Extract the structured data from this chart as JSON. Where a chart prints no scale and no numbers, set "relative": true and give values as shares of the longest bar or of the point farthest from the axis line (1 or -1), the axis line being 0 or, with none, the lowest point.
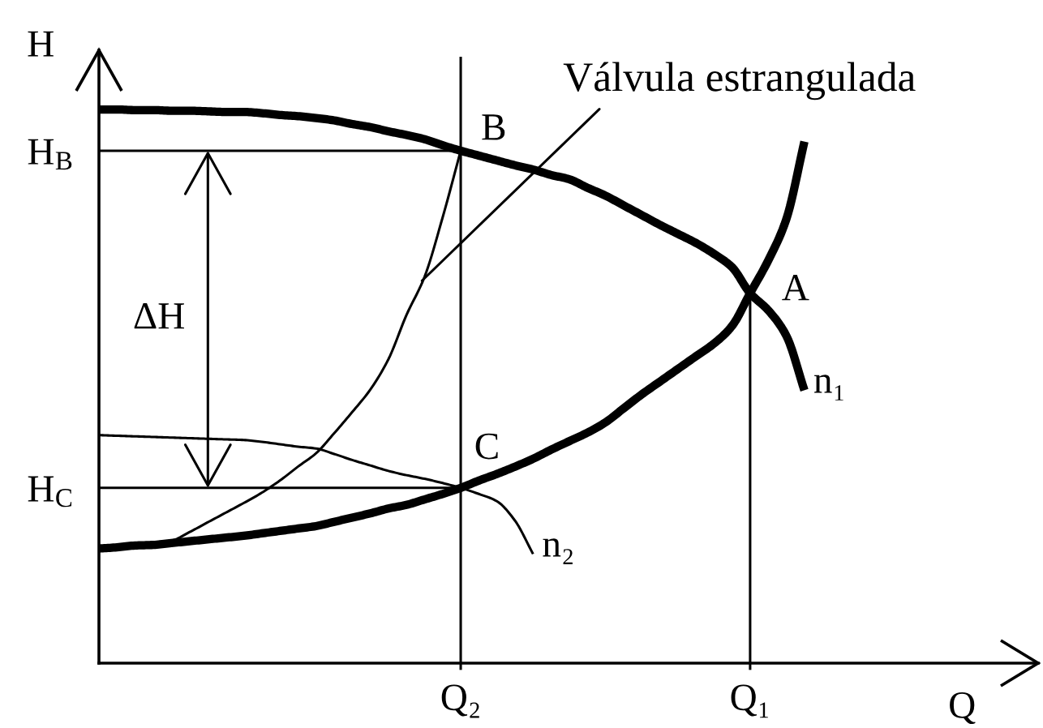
{
  "chart_data": {
    "type": "line",
    "relative": true,
    "xlabel": "Q",
    "ylabel": "H",
    "categories": [
      null,
      null,
      null,
      null,
      null,
      null,
      null,
      null,
      null,
      null,
      null,
      null,
      null,
      null,
      null,
      null,
      null,
      null,
      null,
      null,
      "Q₂",
      null,
      null,
      null,
      null,
      null,
      null,
      null,
      null,
      null,
      null,
      null,
      null,
      null,
      null,
      null,
      "Q₁",
      null,
      null,
      null
    ],
    "series": [
      {
        "name": "n₁",
        "color": "#000000",
        "values": [
          0.913,
          0.913,
          0.912,
          0.912,
          0.911,
          0.911,
          0.91,
          0.909,
          0.909,
          0.907,
          0.904,
          0.902,
          0.899,
          0.895,
          0.889,
          0.884,
          0.877,
          0.871,
          0.864,
          0.854,
          0.845,
          0.837,
          0.829,
          0.821,
          0.814,
          0.805,
          0.798,
          0.784,
          0.771,
          0.755,
          0.739,
          0.723,
          0.708,
          0.693,
          0.675,
          0.653,
          0.61,
          0.582,
          0.54,
          0.45
        ]
      },
      {
        "color": "#000000",
        "values": [
          0.189,
          0.191,
          0.194,
          0.195,
          0.198,
          0.201,
          0.204,
          0.207,
          0.21,
          0.214,
          0.218,
          0.222,
          0.226,
          0.233,
          0.24,
          0.247,
          0.255,
          0.261,
          0.27,
          0.279,
          0.289,
          0.301,
          0.312,
          0.324,
          0.337,
          0.352,
          0.366,
          0.38,
          0.397,
          0.42,
          0.443,
          0.464,
          0.485,
          0.506,
          0.527,
          0.556,
          0.61,
          0.664,
          0.732,
          0.86
        ]
      },
      {
        "color": "#000000",
        "values": [
          0.189,
          0.193,
          0.196,
          0.199,
          0.202,
          0.216,
          0.232,
          0.248,
          0.264,
          0.281,
          0.301,
          0.324,
          0.346,
          0.379,
          0.414,
          0.451,
          0.501,
          0.574,
          0.637,
          0.735,
          0.845,
          null,
          null,
          null,
          null,
          null,
          null,
          null,
          null,
          null,
          null,
          null,
          null,
          null,
          null,
          null,
          null,
          null,
          null,
          null
        ]
      },
      {
        "name": "n₂",
        "color": "#000000",
        "values": [
          0.376,
          0.375,
          0.374,
          0.373,
          0.372,
          0.371,
          0.37,
          0.369,
          0.368,
          0.365,
          0.361,
          0.357,
          0.354,
          0.345,
          0.335,
          0.326,
          0.317,
          0.31,
          0.304,
          0.297,
          0.289,
          0.279,
          0.267,
          0.235,
          0.18,
          null,
          null,
          null,
          null,
          null,
          null,
          null,
          null,
          null,
          null,
          null,
          null,
          null,
          null,
          null
        ]
      },
      {
        "name": "H$_{B}$",
        "color": "#000000",
        "values": [
          0.845,
          0.845,
          0.845,
          0.845,
          0.845,
          0.845,
          0.845,
          0.845,
          0.845,
          0.845,
          0.845,
          0.845,
          0.845,
          0.845,
          0.845,
          0.845,
          0.845,
          0.845,
          0.845,
          0.845,
          0.845,
          null,
          null,
          null,
          null,
          null,
          null,
          null,
          null,
          null,
          null,
          null,
          null,
          null,
          null,
          null,
          null,
          null,
          null,
          null
        ]
      },
      {
        "name": "H$_{C}$",
        "color": "#000000",
        "values": [
          0.289,
          0.289,
          0.289,
          0.289,
          0.289,
          0.289,
          0.289,
          0.289,
          0.289,
          0.289,
          0.289,
          0.289,
          0.289,
          0.289,
          0.289,
          0.289,
          0.289,
          0.289,
          0.289,
          0.289,
          0.289,
          null,
          null,
          null,
          null,
          null,
          null,
          null,
          null,
          null,
          null,
          null,
          null,
          null,
          null,
          null,
          null,
          null,
          null,
          null
        ]
      },
      {
        "color": "#000000",
        "x": [
          "Q₂",
          "Q₂"
        ],
        "values": [
          0,
          1
        ]
      },
      {
        "color": "#000000",
        "x": [
          "Q₁",
          "Q₁"
        ],
        "values": [
          0,
          0.61
        ]
      }
    ],
    "annotations": [
      {
        "text": "A",
        "x": "Q₁",
        "y": 0.61
      },
      {
        "text": "B",
        "x": "Q₂",
        "y": 0.845
      },
      {
        "text": "C",
        "x": "Q₂",
        "y": 0.289
      },
      "Válvula estrangulada",
      "ΔH"
    ]
  }
}
